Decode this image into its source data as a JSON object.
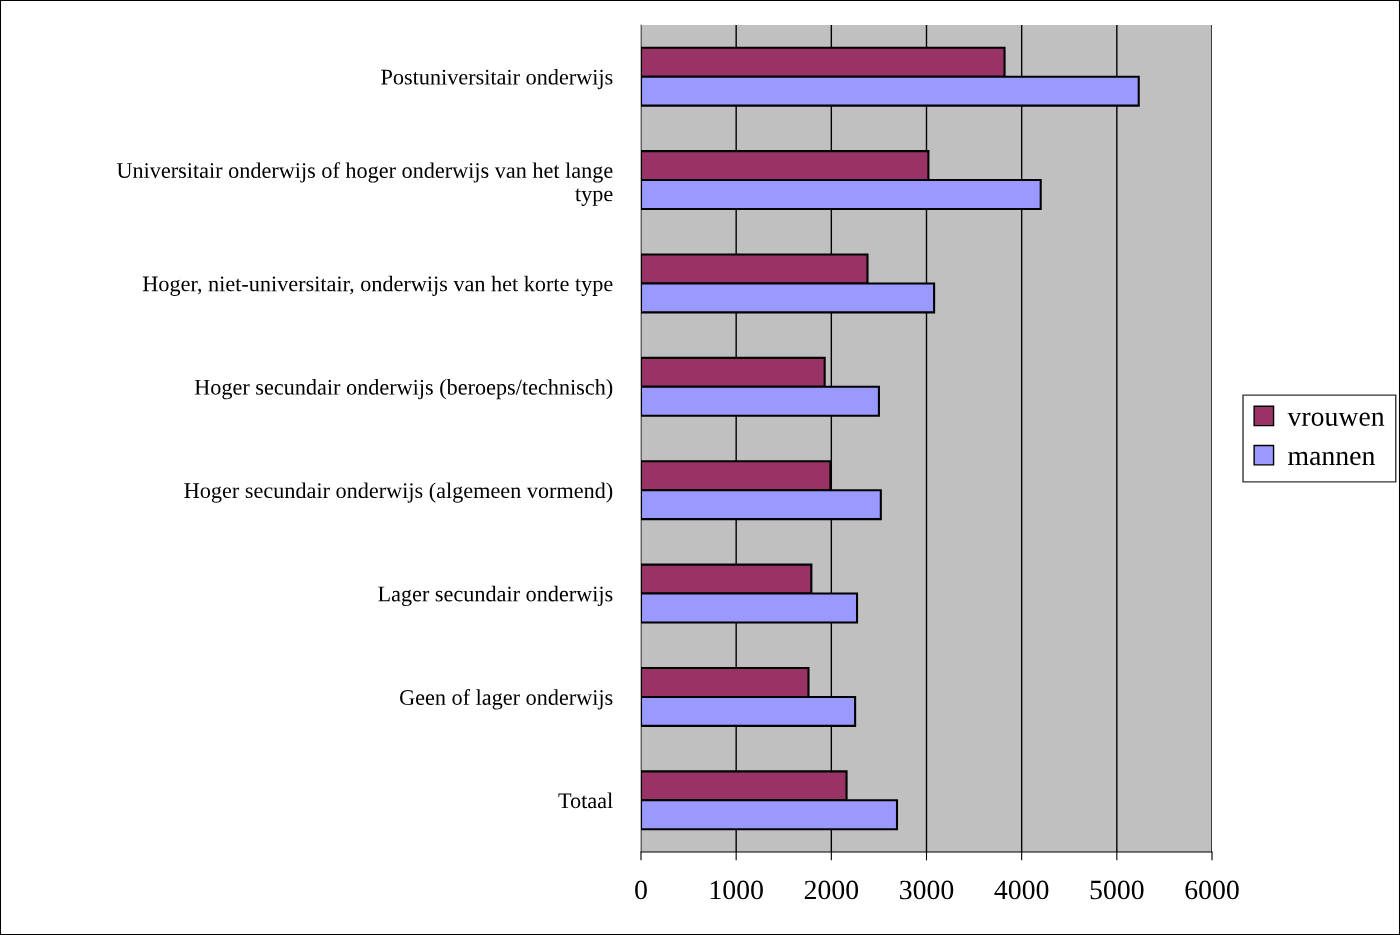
{
  "chart_data": {
    "type": "bar",
    "orientation": "horizontal",
    "categories": [
      "Postuniversitair onderwijs",
      "Universitair onderwijs of hoger onderwijs van het lange\ntype",
      "Hoger, niet-universitair, onderwijs van het korte type",
      "Hoger secundair onderwijs (beroeps/technisch)",
      "Hoger secundair onderwijs (algemeen vormend)",
      "Lager secundair onderwijs",
      "Geen of lager onderwijs",
      "Totaal"
    ],
    "series": [
      {
        "name": "vrouwen",
        "color": "#993366",
        "values": [
          3820,
          3020,
          2380,
          1930,
          1990,
          1790,
          1760,
          2160
        ]
      },
      {
        "name": "mannen",
        "color": "#9999ff",
        "values": [
          5230,
          4200,
          3080,
          2500,
          2520,
          2270,
          2250,
          2690
        ]
      }
    ],
    "xlim": [
      0,
      6000
    ],
    "xticks": [
      0,
      1000,
      2000,
      3000,
      4000,
      5000,
      6000
    ],
    "grid": "x",
    "legend": "right"
  }
}
